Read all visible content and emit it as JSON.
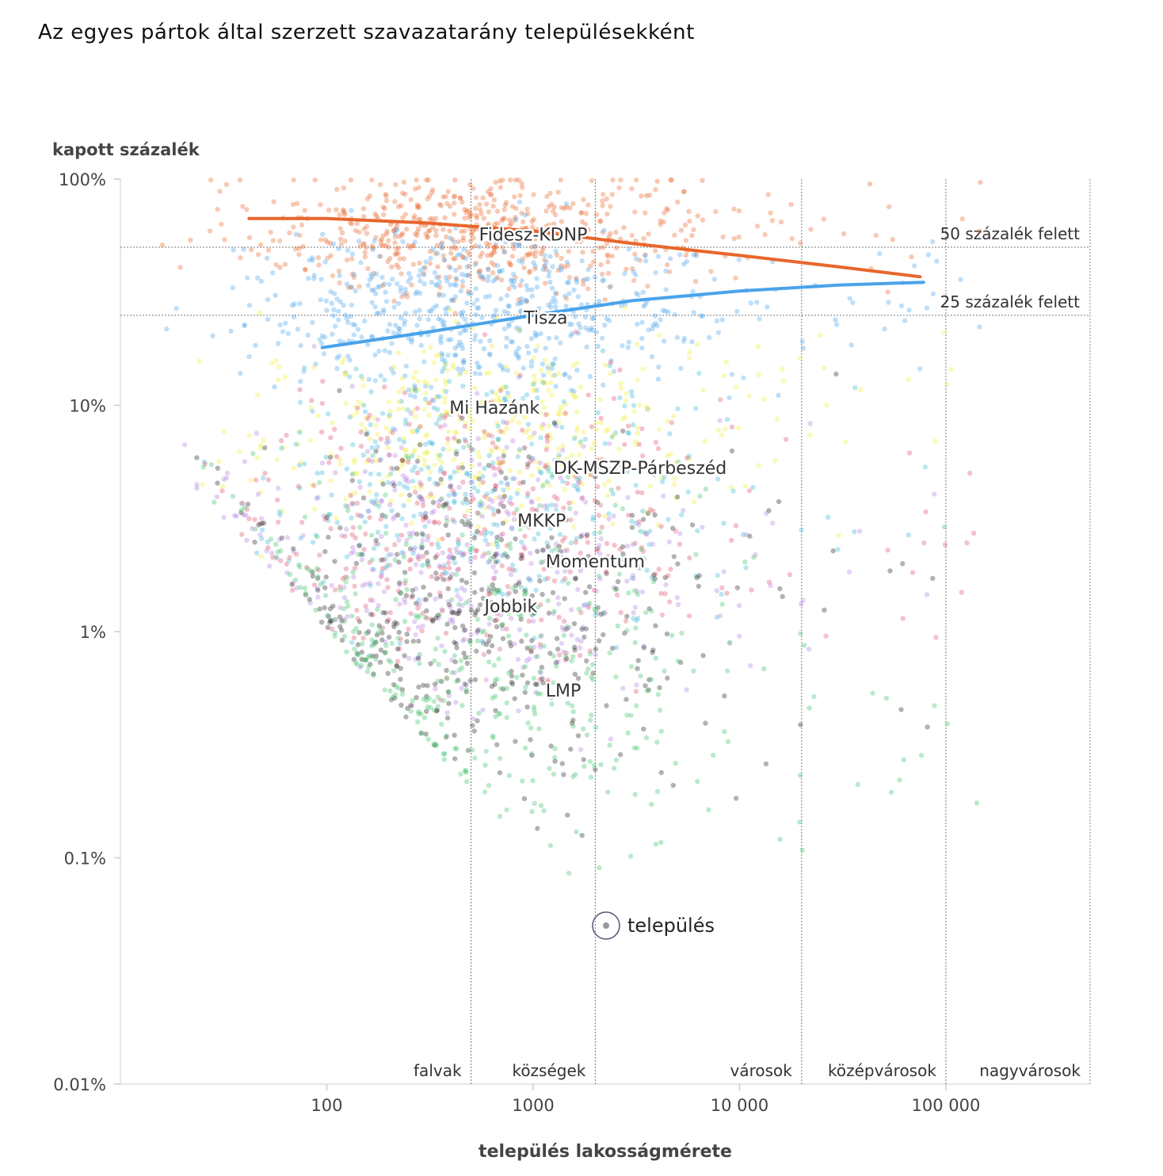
{
  "title": "Az egyes pártok által szerzett szavazatarány településekként",
  "chart_data": {
    "type": "scatter",
    "x_scale": "log",
    "y_scale": "log",
    "xlabel": "település lakosságmérete",
    "ylabel": "kapott százalék",
    "xlim": [
      10,
      500000
    ],
    "ylim": [
      0.01,
      100
    ],
    "x_ticks": [
      {
        "value": 100,
        "label": "100"
      },
      {
        "value": 1000,
        "label": "1000"
      },
      {
        "value": 10000,
        "label": "10 000"
      },
      {
        "value": 100000,
        "label": "100 000"
      }
    ],
    "y_ticks": [
      {
        "value": 100,
        "label": "100%"
      },
      {
        "value": 10,
        "label": "10%"
      },
      {
        "value": 1,
        "label": "1%"
      },
      {
        "value": 0.1,
        "label": "0.1%"
      },
      {
        "value": 0.01,
        "label": "0.01%"
      }
    ],
    "size_bands": [
      {
        "label": "falvak",
        "to": 500
      },
      {
        "label": "községek",
        "to": 2000
      },
      {
        "label": "városok",
        "to": 20000
      },
      {
        "label": "középvárosok",
        "to": 100000
      },
      {
        "label": "nagyvárosok",
        "to": 500000
      }
    ],
    "reference_lines": [
      {
        "value": 50,
        "label": "50 százalék felett"
      },
      {
        "value": 25,
        "label": "25 százalék felett"
      }
    ],
    "legend": {
      "label": "település"
    },
    "series": [
      {
        "name": "Fidesz-KDNP",
        "color": "#e8662c",
        "label_x": 1000,
        "label_y": 57,
        "trend": [
          [
            42,
            67
          ],
          [
            100,
            67
          ],
          [
            300,
            64
          ],
          [
            1000,
            59
          ],
          [
            3000,
            52
          ],
          [
            10000,
            46
          ],
          [
            30000,
            41
          ],
          [
            75000,
            37
          ]
        ],
        "cloud": {
          "y_center": 58,
          "y_spread": 0.13,
          "x_min": 12,
          "x_max": 150000
        }
      },
      {
        "name": "Tisza",
        "color": "#4aa3ea",
        "label_x": 1150,
        "label_y": 24.5,
        "trend": [
          [
            95,
            18
          ],
          [
            300,
            21
          ],
          [
            1000,
            25
          ],
          [
            3000,
            29
          ],
          [
            10000,
            32
          ],
          [
            30000,
            34
          ],
          [
            78000,
            35
          ]
        ],
        "cloud": {
          "y_center": 26,
          "y_spread": 0.17,
          "x_min": 12,
          "x_max": 150000
        }
      },
      {
        "name": "Mi Hazánk",
        "color": "#f1ef3a",
        "label_x": 650,
        "label_y": 9.8,
        "cloud": {
          "y_center": 8,
          "y_spread": 0.2,
          "x_min": 20,
          "x_max": 150000
        }
      },
      {
        "name": "DK-MSZP-Párbeszéd",
        "color": "#39b8d6",
        "label_x": 3300,
        "label_y": 5.3,
        "cloud": {
          "y_center": 4.5,
          "y_spread": 0.28,
          "x_min": 20,
          "x_max": 150000
        }
      },
      {
        "name": "MKKP",
        "color": "#e0506a",
        "label_x": 1100,
        "label_y": 3.1,
        "cloud": {
          "y_center": 3.0,
          "y_spread": 0.3,
          "x_min": 20,
          "x_max": 150000
        }
      },
      {
        "name": "Momentum",
        "color": "#b47ee0",
        "label_x": 2000,
        "label_y": 2.05,
        "cloud": {
          "y_center": 2.0,
          "y_spread": 0.32,
          "x_min": 20,
          "x_max": 150000
        }
      },
      {
        "name": "Jobbik",
        "color": "#222222",
        "label_x": 780,
        "label_y": 1.3,
        "cloud": {
          "y_center": 1.2,
          "y_spread": 0.38,
          "x_min": 20,
          "x_max": 150000
        }
      },
      {
        "name": "LMP",
        "color": "#3cc46a",
        "label_x": 1400,
        "label_y": 0.55,
        "cloud": {
          "y_center": 0.7,
          "y_spread": 0.42,
          "x_min": 20,
          "x_max": 150000
        }
      }
    ]
  }
}
